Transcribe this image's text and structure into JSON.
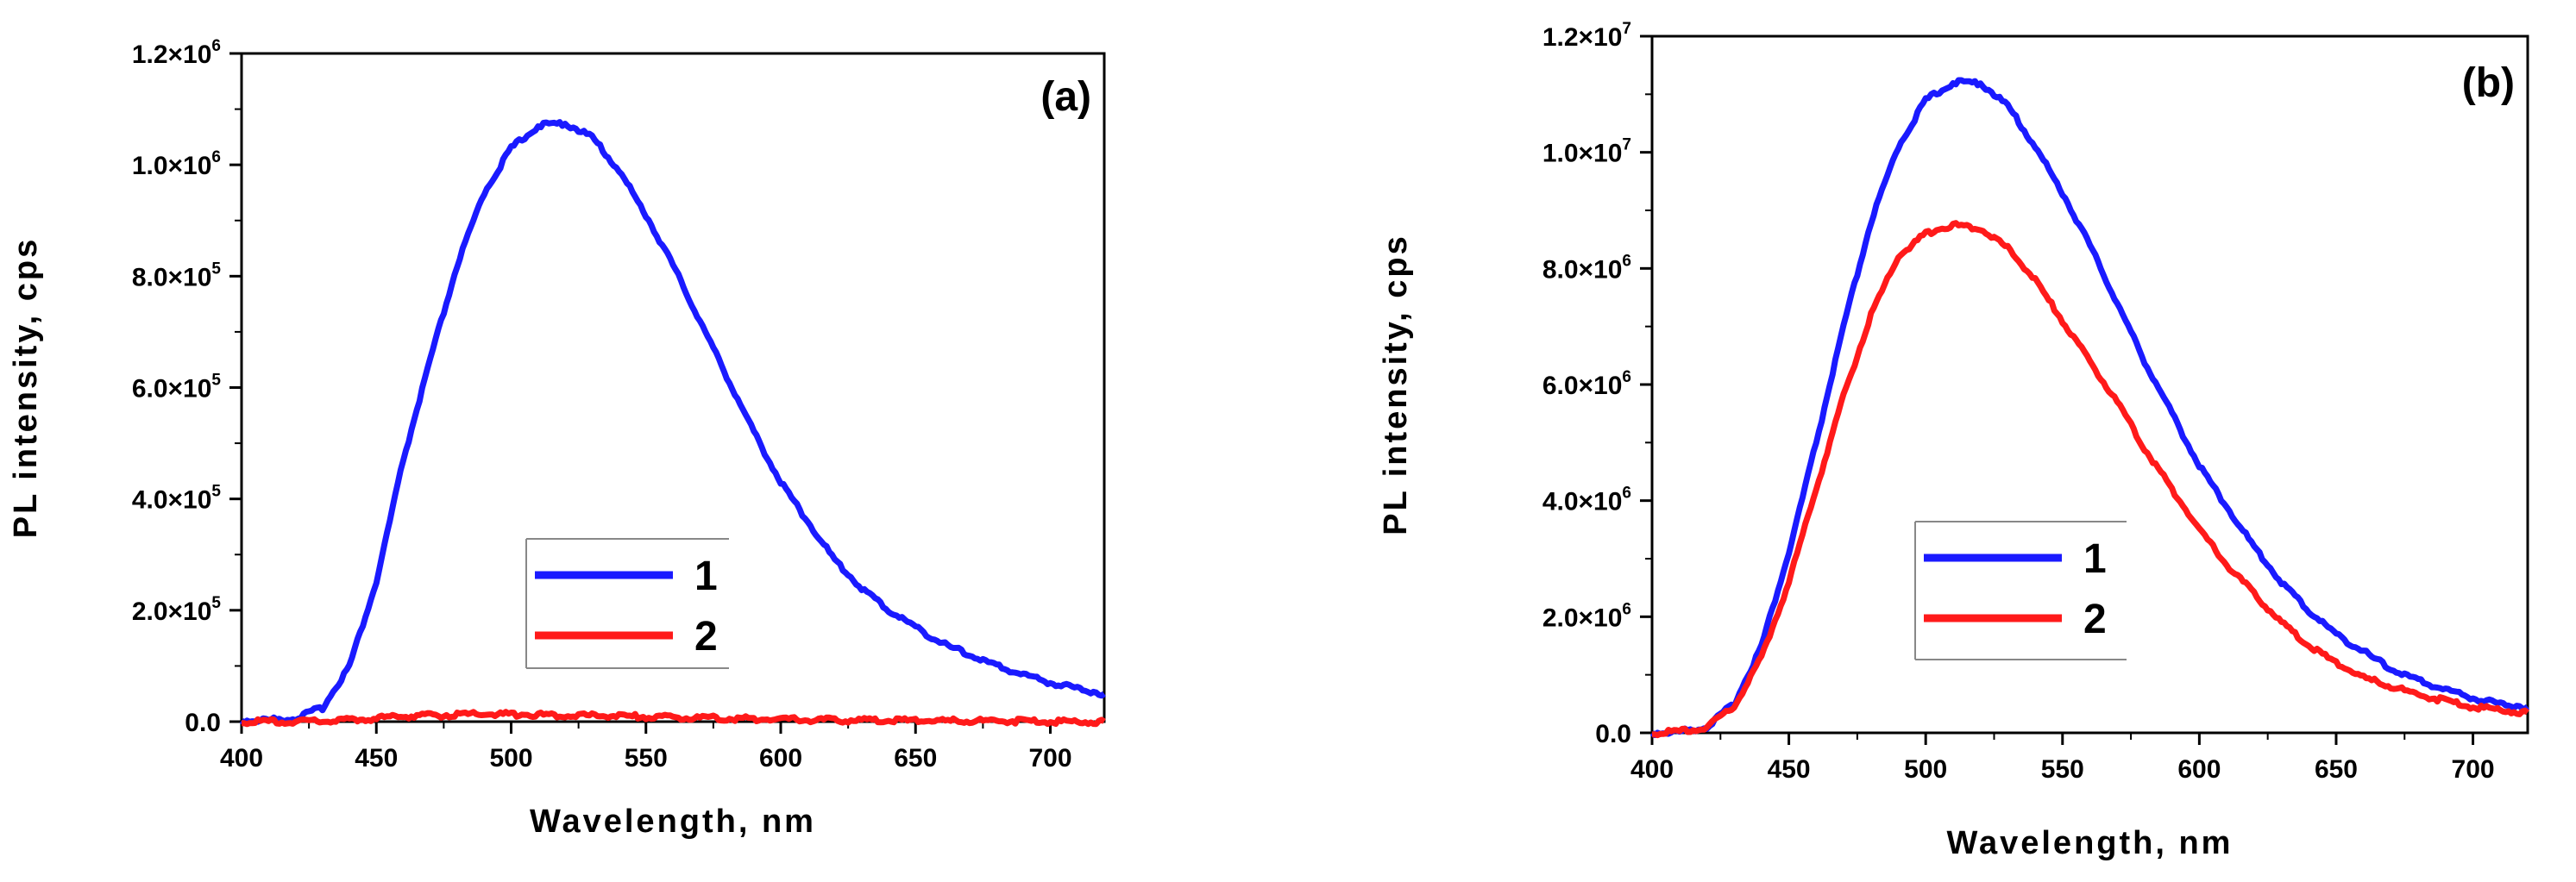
{
  "chart_data": [
    {
      "type": "line",
      "panel_label": "(a)",
      "xlabel": "Wavelength, nm",
      "ylabel": "PL intensity, cps",
      "xlim": [
        400,
        720
      ],
      "ylim": [
        0,
        1200000
      ],
      "x_ticks": [
        400,
        450,
        500,
        550,
        600,
        650,
        700
      ],
      "y_ticks": [
        {
          "value": 0,
          "mantissa": "0.0",
          "exp": ""
        },
        {
          "value": 200000,
          "mantissa": "2.0",
          "exp": "5"
        },
        {
          "value": 400000,
          "mantissa": "4.0",
          "exp": "5"
        },
        {
          "value": 600000,
          "mantissa": "6.0",
          "exp": "5"
        },
        {
          "value": 800000,
          "mantissa": "8.0",
          "exp": "5"
        },
        {
          "value": 1000000,
          "mantissa": "1.0",
          "exp": "6"
        },
        {
          "value": 1200000,
          "mantissa": "1.2",
          "exp": "6"
        }
      ],
      "x": [
        400,
        410,
        420,
        430,
        440,
        450,
        460,
        470,
        480,
        490,
        500,
        510,
        520,
        530,
        540,
        550,
        560,
        570,
        580,
        590,
        600,
        610,
        620,
        630,
        640,
        650,
        660,
        670,
        680,
        690,
        700,
        710,
        720
      ],
      "series": [
        {
          "name": "1",
          "color": "#1a1aff",
          "values": [
            2000,
            3000,
            6000,
            25000,
            100000,
            250000,
            470000,
            650000,
            820000,
            950000,
            1030000,
            1070000,
            1075000,
            1050000,
            990000,
            910000,
            820000,
            720000,
            620000,
            520000,
            430000,
            360000,
            290000,
            240000,
            200000,
            170000,
            140000,
            120000,
            100000,
            85000,
            70000,
            60000,
            50000
          ]
        },
        {
          "name": "2",
          "color": "#ff1a1a",
          "values": [
            0,
            0,
            200,
            1000,
            3000,
            6000,
            9000,
            11000,
            12500,
            13000,
            13000,
            12500,
            12000,
            11000,
            10000,
            9000,
            8000,
            7000,
            6000,
            5000,
            4000,
            3500,
            3000,
            2500,
            2000,
            1700,
            1400,
            1100,
            900,
            700,
            500,
            400,
            300
          ]
        }
      ],
      "legend": [
        "1",
        "2"
      ]
    },
    {
      "type": "line",
      "panel_label": "(b)",
      "xlabel": "Wavelength, nm",
      "ylabel": "PL intensity, cps",
      "xlim": [
        400,
        720
      ],
      "ylim": [
        0,
        12000000
      ],
      "x_ticks": [
        400,
        450,
        500,
        550,
        600,
        650,
        700
      ],
      "y_ticks": [
        {
          "value": 0,
          "mantissa": "0.0",
          "exp": ""
        },
        {
          "value": 2000000,
          "mantissa": "2.0",
          "exp": "6"
        },
        {
          "value": 4000000,
          "mantissa": "4.0",
          "exp": "6"
        },
        {
          "value": 6000000,
          "mantissa": "6.0",
          "exp": "6"
        },
        {
          "value": 8000000,
          "mantissa": "8.0",
          "exp": "6"
        },
        {
          "value": 10000000,
          "mantissa": "1.0",
          "exp": "7"
        },
        {
          "value": 12000000,
          "mantissa": "1.2",
          "exp": "7"
        }
      ],
      "x": [
        400,
        410,
        420,
        430,
        440,
        450,
        460,
        470,
        480,
        490,
        500,
        510,
        520,
        530,
        540,
        550,
        560,
        570,
        580,
        590,
        600,
        610,
        620,
        630,
        640,
        650,
        660,
        670,
        680,
        690,
        700,
        710,
        720
      ],
      "series": [
        {
          "name": "1",
          "color": "#1a1aff",
          "values": [
            0,
            20000,
            100000,
            500000,
            1500000,
            3100000,
            5000000,
            7000000,
            8800000,
            10100000,
            10900000,
            11200000,
            11200000,
            10800000,
            10100000,
            9300000,
            8400000,
            7400000,
            6400000,
            5500000,
            4600000,
            3900000,
            3200000,
            2600000,
            2100000,
            1700000,
            1400000,
            1100000,
            900000,
            750000,
            600000,
            500000,
            450000
          ]
        },
        {
          "name": "2",
          "color": "#ff1a1a",
          "values": [
            0,
            20000,
            100000,
            450000,
            1300000,
            2600000,
            4200000,
            5800000,
            7200000,
            8200000,
            8600000,
            8750000,
            8700000,
            8350000,
            7800000,
            7100000,
            6400000,
            5700000,
            4900000,
            4200000,
            3500000,
            2900000,
            2400000,
            1900000,
            1500000,
            1200000,
            950000,
            800000,
            650000,
            550000,
            450000,
            400000,
            350000
          ]
        }
      ],
      "legend": [
        "1",
        "2"
      ]
    }
  ]
}
